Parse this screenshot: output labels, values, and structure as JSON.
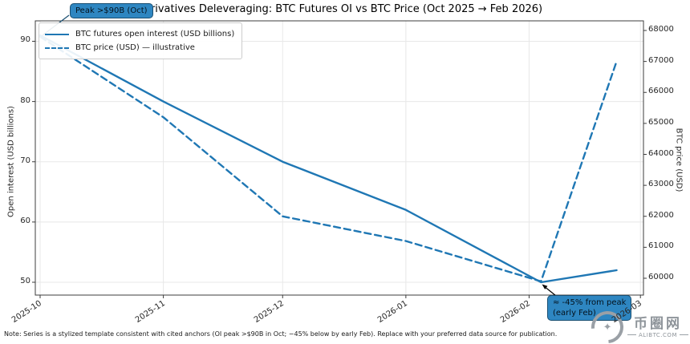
{
  "title": "Derivatives Deleveraging: BTC Futures OI vs BTC Price (Oct 2025 → Feb 2026)",
  "note": "Note: Series is a stylized template consistent with cited anchors (OI peak >$90B in Oct; −45% below by early Feb). Replace with your preferred data source for publication.",
  "annotations": {
    "peak": {
      "text": "Peak >$90B (Oct)"
    },
    "trough": {
      "line1": "≈ -45% from peak",
      "line2": "(early Feb)"
    }
  },
  "watermark": {
    "name": "币圈网",
    "site": "ALIBTC.COM",
    "logo": "sparkle-circle-icon"
  },
  "colors": {
    "line": "#1f77b4",
    "annotation_fill": "#2e86c1",
    "annotation_border": "#1a4f72",
    "grid": "#e8e8e8",
    "spine": "#3c3c3c",
    "arrow": "#000000"
  },
  "chart_data": {
    "type": "line",
    "title": "Derivatives Deleveraging: BTC Futures OI vs BTC Price (Oct 2025 → Feb 2026)",
    "grid": true,
    "legend_position": "upper-left",
    "x_tick_labels": [
      "2025-10",
      "2025-11",
      "2025-12",
      "2026-01",
      "2026-02",
      "2026-03"
    ],
    "left_axis": {
      "label": "Open interest (USD billions)",
      "ticks": [
        50,
        60,
        70,
        80,
        90
      ],
      "range": [
        48,
        93.5
      ]
    },
    "right_axis": {
      "label": "BTC price (USD)",
      "ticks": [
        60000,
        61000,
        62000,
        63000,
        64000,
        65000,
        66000,
        67000,
        68000
      ],
      "range": [
        59450,
        68300
      ]
    },
    "series": [
      {
        "name": "BTC futures open interest (USD billions)",
        "style": "solid",
        "axis": "left",
        "x": [
          "2025-10-01",
          "2025-11-01",
          "2025-12-01",
          "2026-01-01",
          "2026-02-04",
          "2026-02-23"
        ],
        "values": [
          91,
          80,
          70,
          62,
          50,
          52
        ]
      },
      {
        "name": "BTC price (USD) — illustrative",
        "style": "dashed",
        "axis": "right",
        "x": [
          "2025-10-01",
          "2025-11-01",
          "2025-12-01",
          "2026-01-01",
          "2026-02-04",
          "2026-02-23"
        ],
        "values": [
          67800,
          65200,
          62000,
          61200,
          59900,
          67000
        ]
      }
    ]
  }
}
